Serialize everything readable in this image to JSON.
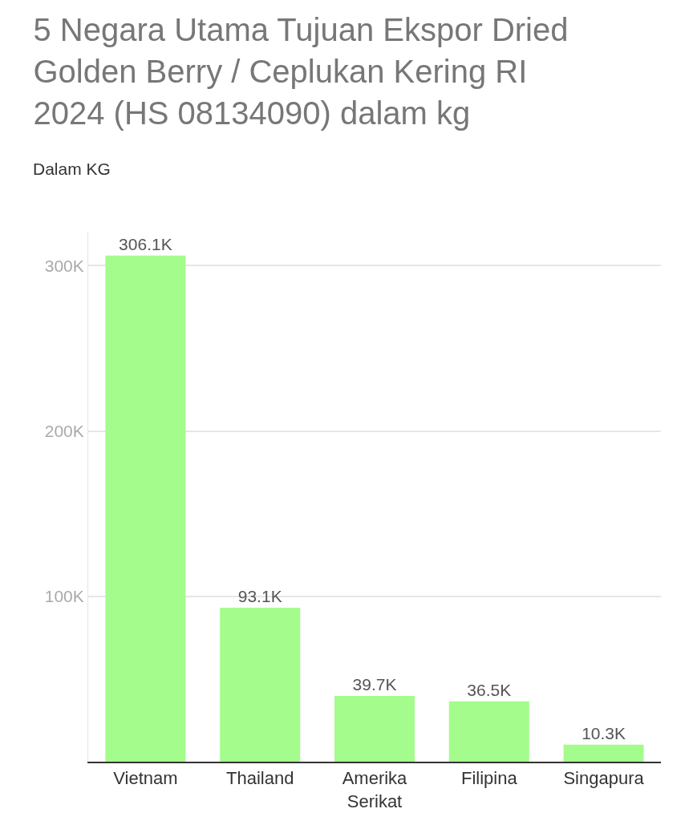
{
  "chart_data": {
    "type": "bar",
    "title": "5 Negara Utama Tujuan Ekspor Dried Golden Berry / Ceplukan Kering RI 2024 (HS 08134090) dalam kg",
    "ylabel": "Dalam KG",
    "categories": [
      "Vietnam",
      "Thailand",
      "Amerika Serikat",
      "Filipina",
      "Singapura"
    ],
    "values": [
      306100,
      93100,
      39700,
      36500,
      10300
    ],
    "value_labels": [
      "306.1K",
      "93.1K",
      "39.7K",
      "36.5K",
      "10.3K"
    ],
    "color": "#a3fc8c",
    "ylim": [
      0,
      320000
    ],
    "yticks": [
      {
        "value": 100000,
        "label": "100K"
      },
      {
        "value": 200000,
        "label": "200K"
      },
      {
        "value": 300000,
        "label": "300K"
      }
    ],
    "grid": "y"
  }
}
